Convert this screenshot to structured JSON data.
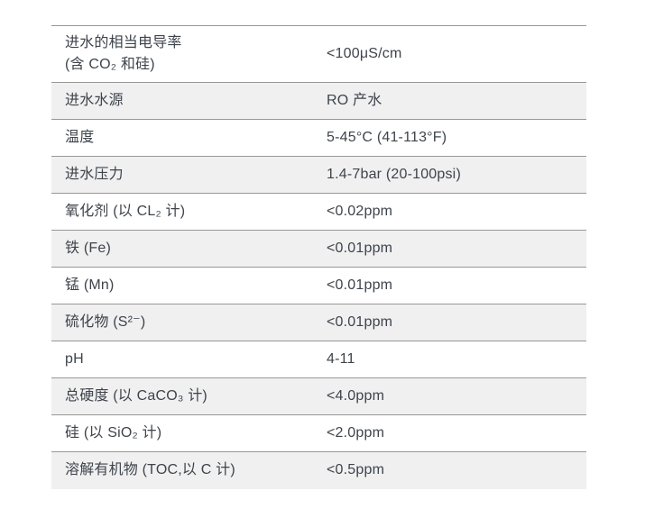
{
  "table": {
    "name": "feed-water-specifications",
    "columns": [
      "parameter",
      "requirement"
    ],
    "rows": [
      {
        "label": "进水的相当电导率\n(含 CO₂ 和硅)",
        "value": "<100μS/cm",
        "shaded": false
      },
      {
        "label": "进水水源",
        "value": "RO 产水",
        "shaded": true
      },
      {
        "label": "温度",
        "value": "5-45°C (41-113°F)",
        "shaded": false
      },
      {
        "label": "进水压力",
        "value": "1.4-7bar (20-100psi)",
        "shaded": true
      },
      {
        "label": "氧化剂 (以 CL₂ 计)",
        "value": "<0.02ppm",
        "shaded": false
      },
      {
        "label": "铁 (Fe)",
        "value": "<0.01ppm",
        "shaded": true
      },
      {
        "label": "锰 (Mn)",
        "value": "<0.01ppm",
        "shaded": false
      },
      {
        "label": "硫化物 (S²⁻)",
        "value": "<0.01ppm",
        "shaded": true
      },
      {
        "label": "pH",
        "value": "4-11",
        "shaded": false
      },
      {
        "label": "总硬度 (以 CaCO₃ 计)",
        "value": "<4.0ppm",
        "shaded": true
      },
      {
        "label": "硅 (以 SiO₂ 计)",
        "value": "<2.0ppm",
        "shaded": false
      },
      {
        "label": "溶解有机物 (TOC,以 C 计)",
        "value": "<0.5ppm",
        "shaded": true
      }
    ],
    "colors": {
      "text": "#3e444b",
      "border": "#979797",
      "shaded_bg": "#f0f0f1",
      "page_bg": "#ffffff"
    }
  }
}
